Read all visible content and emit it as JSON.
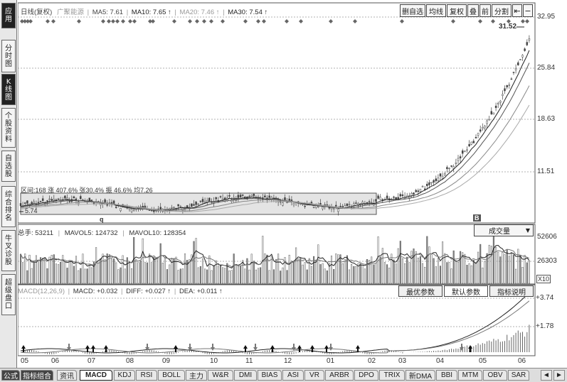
{
  "sidebar": {
    "items": [
      {
        "label": "应用",
        "active": true
      },
      {
        "label": "分时图",
        "active": false
      },
      {
        "label": "K线图",
        "active": true
      },
      {
        "label": "个股资料",
        "active": false
      },
      {
        "label": "自选股",
        "active": false
      },
      {
        "label": "综合排名",
        "active": false
      },
      {
        "label": "牛叉诊股",
        "active": false
      },
      {
        "label": "超级盘口",
        "active": false
      }
    ]
  },
  "price_panel": {
    "title": "日线(复权)",
    "name": "广聚能源",
    "ma5": "MA5: 7.61",
    "ma10": "MA10: 7.65",
    "ma20": "MA20: 7.46",
    "ma30": "MA30: 7.54",
    "toolbar": [
      "删自选",
      "均线",
      "复权",
      "叠",
      "前",
      "分割"
    ],
    "y_labels": [
      "32.95",
      "25.84",
      "18.63",
      "11.51"
    ],
    "high_label": "31.52",
    "low_label": "5.74",
    "range_stats": "区间:168 涨 407.6% 张30.4% 振 46.6% 均7.26",
    "marker_left": "q",
    "marker_right": "B"
  },
  "volume_panel": {
    "total": "总手: 53211",
    "mavol5": "MAVOL5: 124732",
    "mavol10": "MAVOL10: 128354",
    "selector": "成交量",
    "y_labels": [
      "52606",
      "26303"
    ],
    "unit": "X10"
  },
  "macd_panel": {
    "params": "MACD(12,26,9)",
    "macd": "MACD: +0.032",
    "diff": "DIFF: +0.027",
    "dea": "DEA: +0.011",
    "buttons": [
      "最优参数",
      "默认参数",
      "指标说明"
    ],
    "y_labels": [
      "+3.74",
      "+1.78"
    ]
  },
  "x_axis": [
    "05",
    "06",
    "07",
    "08",
    "09",
    "10",
    "11",
    "12",
    "01",
    "02",
    "03",
    "04",
    "05",
    "06"
  ],
  "bottom_tabs": [
    {
      "label": "公式",
      "style": "dark"
    },
    {
      "label": "指标组合",
      "style": "dark"
    },
    {
      "label": "资讯",
      "style": ""
    },
    {
      "label": "MACD",
      "style": "active"
    },
    {
      "label": "KDJ",
      "style": ""
    },
    {
      "label": "RSI",
      "style": ""
    },
    {
      "label": "BOLL",
      "style": ""
    },
    {
      "label": "主力",
      "style": ""
    },
    {
      "label": "W&R",
      "style": ""
    },
    {
      "label": "DMI",
      "style": ""
    },
    {
      "label": "BIAS",
      "style": ""
    },
    {
      "label": "ASI",
      "style": ""
    },
    {
      "label": "VR",
      "style": ""
    },
    {
      "label": "ARBR",
      "style": ""
    },
    {
      "label": "DPO",
      "style": ""
    },
    {
      "label": "TRIX",
      "style": ""
    },
    {
      "label": "新DMA",
      "style": ""
    },
    {
      "label": "BBI",
      "style": ""
    },
    {
      "label": "MTM",
      "style": ""
    },
    {
      "label": "OBV",
      "style": ""
    },
    {
      "label": "SAR",
      "style": ""
    }
  ],
  "colors": {
    "accent": "#000000",
    "grid": "#999999",
    "highlight": "#d8d8d8"
  }
}
